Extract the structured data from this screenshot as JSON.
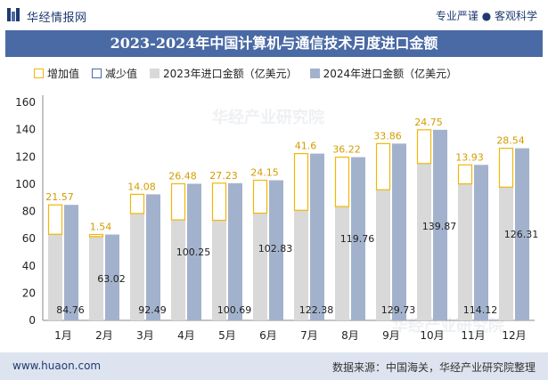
{
  "header": {
    "brand": "华经情报网",
    "tagline": "专业严谨 ● 客观科学"
  },
  "title": "2023-2024年中国计算机与通信技术月度进口金额",
  "legend": {
    "increase": "增加值",
    "decrease": "减少值",
    "s2023": "2023年进口金额（亿美元）",
    "s2024": "2024年进口金额（亿美元）"
  },
  "watermark": "华经产业研究院",
  "footer": {
    "url": "www.huaon.com",
    "source": "数据来源：中国海关，华经产业研究院整理"
  },
  "colors": {
    "s2023": "#d9d9d9",
    "s2024": "#a3b2cc",
    "increase": "#f2b705",
    "decrease": "#4a6aa5",
    "title_bg": "#4a6aa5"
  },
  "chart_data": {
    "type": "bar",
    "title": "2023-2024年中国计算机与通信技术月度进口金额",
    "categories": [
      "1月",
      "2月",
      "3月",
      "4月",
      "5月",
      "6月",
      "7月",
      "8月",
      "9月",
      "10月",
      "11月",
      "12月"
    ],
    "series": [
      {
        "name": "2023年进口金额（亿美元）",
        "values": [
          63.19,
          61.48,
          78.41,
          73.77,
          73.46,
          78.68,
          80.78,
          83.54,
          95.87,
          115.12,
          100.19,
          97.77
        ]
      },
      {
        "name": "2024年进口金额（亿美元）",
        "values": [
          84.76,
          63.02,
          92.49,
          100.25,
          100.69,
          102.83,
          122.38,
          119.76,
          129.73,
          139.87,
          114.12,
          126.31
        ]
      }
    ],
    "increase": [
      21.57,
      1.54,
      14.08,
      26.48,
      27.23,
      24.15,
      41.6,
      36.22,
      33.86,
      24.75,
      13.93,
      28.54
    ],
    "bar_labels": [
      "84.76",
      "63.02",
      "92.49",
      "100.25",
      "100.69",
      "102.83",
      "122.38",
      "119.76",
      "129.73",
      "139.87",
      "114.12",
      "126.31"
    ],
    "increase_labels": [
      "21.57",
      "1.54",
      "14.08",
      "26.48",
      "27.23",
      "24.15",
      "41.6",
      "36.22",
      "33.86",
      "24.75",
      "13.93",
      "28.54"
    ],
    "yticks": [
      "0",
      "20",
      "40",
      "60",
      "80",
      "100",
      "120",
      "140",
      "160"
    ],
    "ylim": [
      0,
      160
    ],
    "grid": false,
    "legend_position": "top"
  }
}
